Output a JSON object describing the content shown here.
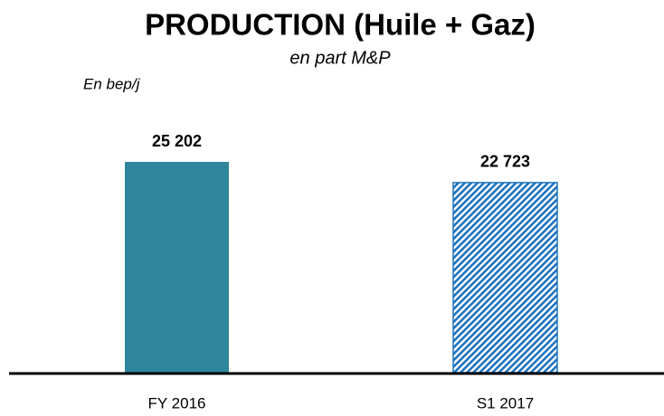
{
  "chart_data": {
    "type": "bar",
    "title": "PRODUCTION (Huile + Gaz)",
    "subtitle": "en part M&P",
    "unit_label": "En bep/j",
    "categories": [
      "FY 2016",
      "S1 2017"
    ],
    "values": [
      25202,
      22723
    ],
    "value_labels": [
      "25 202",
      "22 723"
    ],
    "colors": [
      "#2f869c",
      "#1e73be"
    ],
    "patterns": [
      "solid",
      "hatch"
    ]
  }
}
